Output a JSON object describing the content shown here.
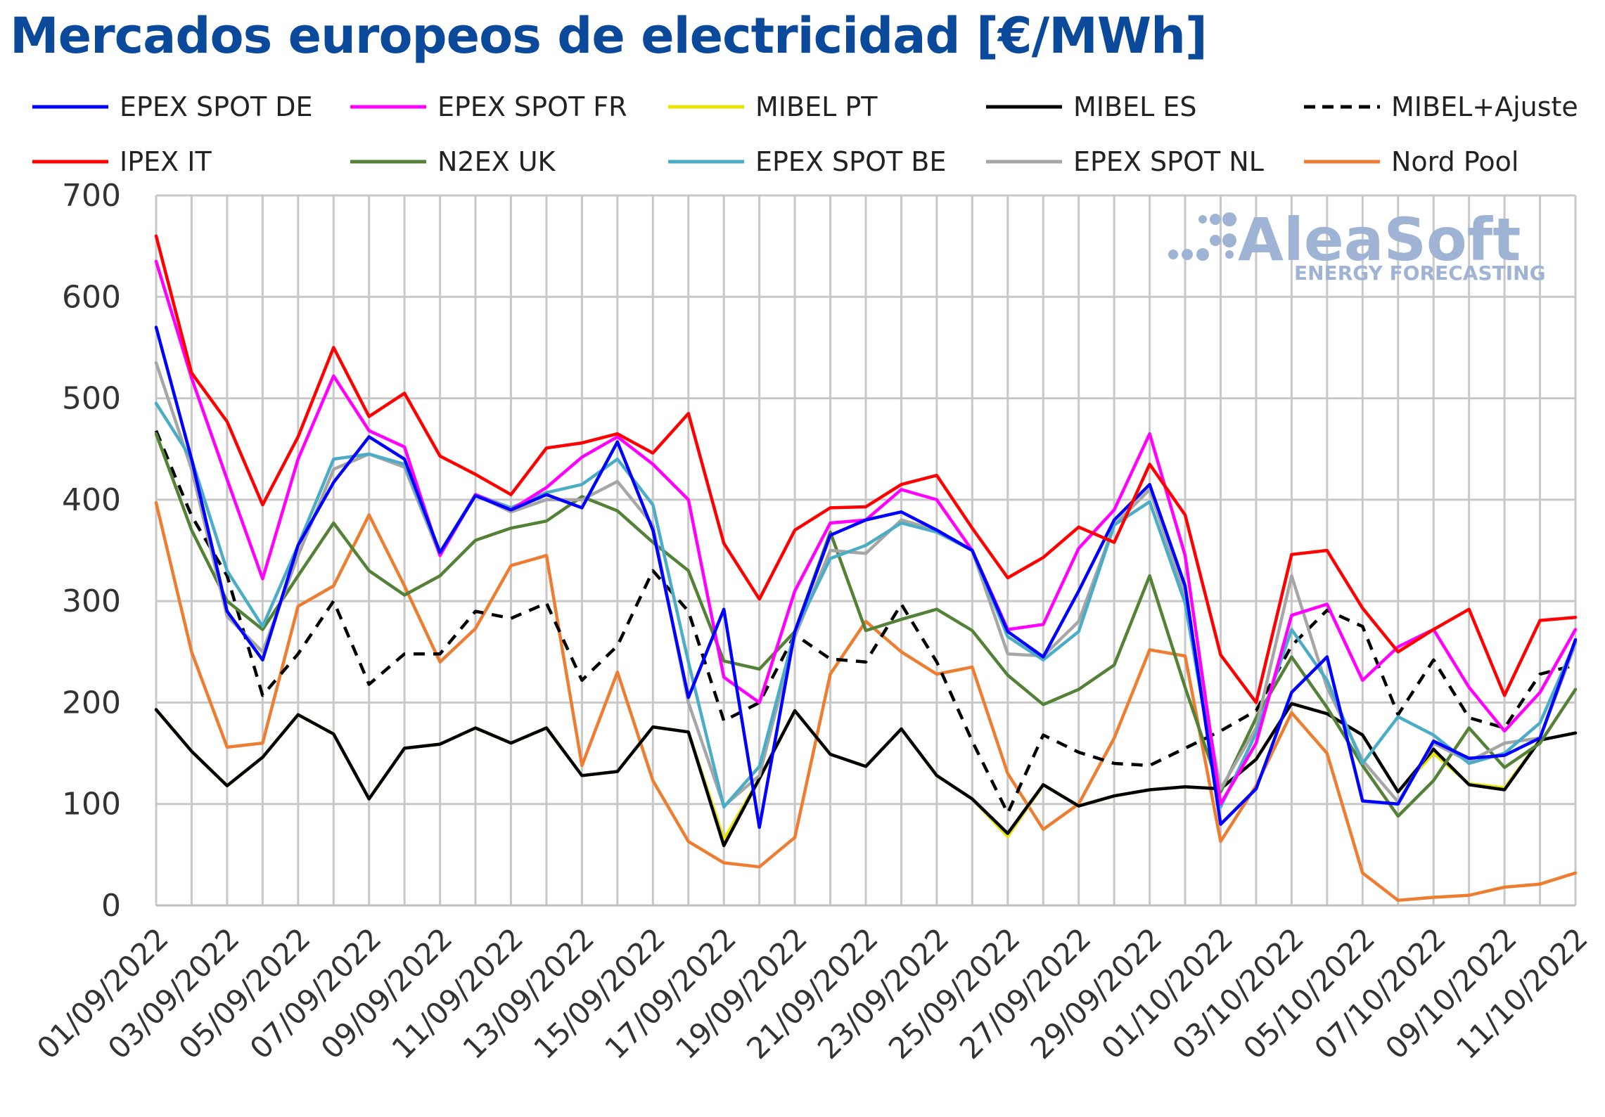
{
  "chart_data": {
    "type": "line",
    "title": "Mercados europeos de electricidad [€/MWh]",
    "xlabel": "",
    "ylabel": "",
    "ylim": [
      0,
      700
    ],
    "yticks": [
      0,
      100,
      200,
      300,
      400,
      500,
      600,
      700
    ],
    "grid": true,
    "legend_position": "top",
    "x": [
      "01/09/2022",
      "02/09/2022",
      "03/09/2022",
      "04/09/2022",
      "05/09/2022",
      "06/09/2022",
      "07/09/2022",
      "08/09/2022",
      "09/09/2022",
      "10/09/2022",
      "11/09/2022",
      "12/09/2022",
      "13/09/2022",
      "14/09/2022",
      "15/09/2022",
      "16/09/2022",
      "17/09/2022",
      "18/09/2022",
      "19/09/2022",
      "20/09/2022",
      "21/09/2022",
      "22/09/2022",
      "23/09/2022",
      "24/09/2022",
      "25/09/2022",
      "26/09/2022",
      "27/09/2022",
      "28/09/2022",
      "29/09/2022",
      "30/09/2022",
      "01/10/2022",
      "02/10/2022",
      "03/10/2022",
      "04/10/2022",
      "05/10/2022",
      "06/10/2022",
      "07/10/2022",
      "08/10/2022",
      "09/10/2022",
      "10/10/2022",
      "11/10/2022"
    ],
    "x_tick_labels": [
      "01/09/2022",
      "03/09/2022",
      "05/09/2022",
      "07/09/2022",
      "09/09/2022",
      "11/09/2022",
      "13/09/2022",
      "15/09/2022",
      "17/09/2022",
      "19/09/2022",
      "21/09/2022",
      "23/09/2022",
      "25/09/2022",
      "27/09/2022",
      "29/09/2022",
      "01/10/2022",
      "03/10/2022",
      "05/10/2022",
      "07/10/2022",
      "09/10/2022",
      "11/10/2022"
    ],
    "series": [
      {
        "name": "EPEX SPOT DE",
        "color": "#0000ff",
        "dashed": false,
        "values": [
          570,
          440,
          290,
          242,
          355,
          417,
          462,
          440,
          348,
          404,
          390,
          405,
          392,
          457,
          370,
          205,
          292,
          77,
          270,
          365,
          380,
          388,
          370,
          350,
          270,
          245,
          310,
          380,
          415,
          315,
          80,
          115,
          210,
          245,
          103,
          100,
          162,
          145,
          148,
          165,
          262
        ]
      },
      {
        "name": "EPEX SPOT FR",
        "color": "#ff00ff",
        "dashed": false,
        "values": [
          635,
          520,
          420,
          322,
          440,
          522,
          468,
          452,
          345,
          405,
          390,
          412,
          442,
          462,
          435,
          400,
          225,
          200,
          310,
          377,
          380,
          410,
          400,
          350,
          272,
          277,
          352,
          390,
          465,
          345,
          100,
          160,
          286,
          297,
          222,
          255,
          272,
          215,
          172,
          210,
          272
        ]
      },
      {
        "name": "MIBEL PT",
        "color": "#e6e600",
        "dashed": false,
        "values": [
          193,
          152,
          118,
          146,
          188,
          169,
          105,
          155,
          159,
          175,
          160,
          175,
          128,
          132,
          176,
          171,
          65,
          125,
          192,
          149,
          137,
          174,
          128,
          105,
          68,
          119,
          98,
          108,
          114,
          117,
          115,
          144,
          199,
          189,
          168,
          112,
          150,
          120,
          116,
          163,
          170
        ]
      },
      {
        "name": "MIBEL ES",
        "color": "#000000",
        "dashed": false,
        "values": [
          193,
          152,
          118,
          146,
          188,
          169,
          105,
          155,
          159,
          175,
          160,
          175,
          128,
          132,
          176,
          171,
          59,
          125,
          192,
          149,
          137,
          174,
          128,
          105,
          71,
          119,
          98,
          108,
          114,
          117,
          115,
          144,
          199,
          189,
          168,
          112,
          154,
          119,
          114,
          163,
          170
        ]
      },
      {
        "name": "MIBEL+Ajuste",
        "color": "#000000",
        "dashed": true,
        "values": [
          468,
          384,
          325,
          207,
          248,
          300,
          218,
          248,
          248,
          290,
          283,
          298,
          222,
          256,
          330,
          290,
          182,
          200,
          267,
          243,
          240,
          297,
          240,
          162,
          91,
          168,
          151,
          140,
          138,
          155,
          172,
          192,
          256,
          291,
          275,
          188,
          242,
          185,
          175,
          228,
          237
        ]
      },
      {
        "name": "IPEX IT",
        "color": "#ff0000",
        "dashed": false,
        "values": [
          660,
          525,
          477,
          395,
          462,
          550,
          482,
          505,
          443,
          425,
          405,
          451,
          456,
          465,
          446,
          485,
          357,
          302,
          370,
          392,
          393,
          415,
          424,
          372,
          323,
          343,
          373,
          358,
          435,
          385,
          247,
          200,
          346,
          350,
          293,
          250,
          272,
          292,
          207,
          281,
          284
        ]
      },
      {
        "name": "N2EX UK",
        "color": "#538135",
        "dashed": false,
        "values": [
          465,
          370,
          300,
          272,
          325,
          377,
          330,
          306,
          325,
          360,
          372,
          379,
          403,
          389,
          358,
          330,
          241,
          233,
          270,
          368,
          271,
          282,
          292,
          271,
          227,
          198,
          213,
          237,
          325,
          215,
          112,
          185,
          245,
          195,
          138,
          88,
          123,
          175,
          136,
          160,
          213
        ]
      },
      {
        "name": "EPEX SPOT BE",
        "color": "#4bacc6",
        "dashed": false,
        "values": [
          495,
          440,
          330,
          275,
          355,
          440,
          445,
          435,
          348,
          405,
          392,
          407,
          415,
          440,
          395,
          240,
          97,
          137,
          270,
          342,
          355,
          377,
          368,
          350,
          265,
          242,
          270,
          375,
          398,
          298,
          97,
          170,
          272,
          222,
          140,
          186,
          168,
          140,
          150,
          180,
          260
        ]
      },
      {
        "name": "EPEX SPOT NL",
        "color": "#a6a6a6",
        "dashed": false,
        "values": [
          535,
          430,
          285,
          250,
          345,
          430,
          445,
          432,
          345,
          405,
          388,
          400,
          400,
          418,
          375,
          200,
          98,
          128,
          265,
          350,
          347,
          380,
          370,
          350,
          248,
          246,
          280,
          375,
          410,
          305,
          115,
          175,
          325,
          215,
          143,
          102,
          160,
          142,
          160,
          165,
          258
        ]
      },
      {
        "name": "Nord Pool",
        "color": "#ed7d31",
        "dashed": false,
        "values": [
          397,
          250,
          156,
          160,
          295,
          315,
          385,
          315,
          240,
          273,
          335,
          345,
          138,
          230,
          123,
          63,
          42,
          38,
          67,
          228,
          280,
          250,
          228,
          235,
          130,
          75,
          100,
          165,
          252,
          246,
          63,
          118,
          190,
          150,
          32,
          5,
          8,
          10,
          18,
          21,
          32
        ]
      }
    ]
  },
  "watermark": {
    "brand": "AleaSoft",
    "tagline": "ENERGY FORECASTING"
  }
}
